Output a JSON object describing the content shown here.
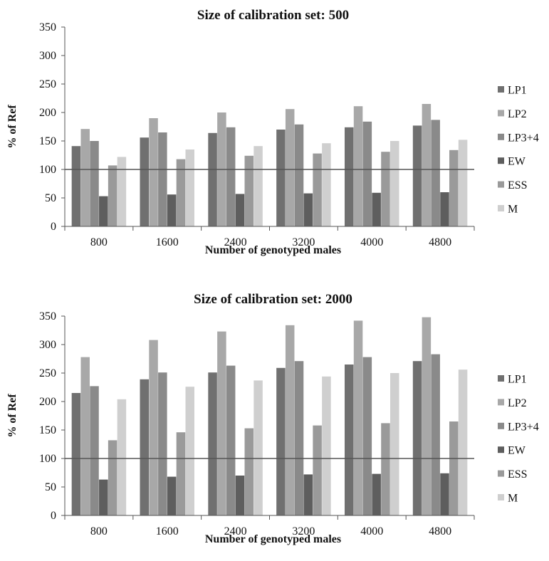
{
  "chart_data": [
    {
      "type": "bar",
      "title": "Size of calibration set: 500",
      "xlabel": "Number of genotyped males",
      "ylabel": "% of Ref",
      "ylim": [
        0,
        350
      ],
      "yticks": [
        0,
        50,
        100,
        150,
        200,
        250,
        300,
        350
      ],
      "reference_line": 100,
      "categories": [
        "800",
        "1600",
        "2400",
        "3200",
        "4000",
        "4800"
      ],
      "legend_position": "right",
      "series": [
        {
          "name": "LP1",
          "color": "#707070",
          "values": [
            141,
            156,
            164,
            170,
            174,
            177
          ]
        },
        {
          "name": "LP2",
          "color": "#a8a8a8",
          "values": [
            171,
            190,
            200,
            206,
            211,
            215
          ]
        },
        {
          "name": "LP3+4",
          "color": "#8a8a8a",
          "values": [
            150,
            165,
            174,
            179,
            184,
            187
          ]
        },
        {
          "name": "EW",
          "color": "#5e5e5e",
          "values": [
            53,
            56,
            57,
            58,
            59,
            60
          ]
        },
        {
          "name": "ESS",
          "color": "#9a9a9a",
          "values": [
            107,
            118,
            124,
            128,
            131,
            134
          ]
        },
        {
          "name": "M",
          "color": "#cfcfcf",
          "values": [
            122,
            135,
            141,
            146,
            150,
            152
          ]
        }
      ]
    },
    {
      "type": "bar",
      "title": "Size of calibration set: 2000",
      "xlabel": "Number of genotyped males",
      "ylabel": "% of Ref",
      "ylim": [
        0,
        350
      ],
      "yticks": [
        0,
        50,
        100,
        150,
        200,
        250,
        300,
        350
      ],
      "reference_line": 100,
      "categories": [
        "800",
        "1600",
        "2400",
        "3200",
        "4000",
        "4800"
      ],
      "legend_position": "right",
      "series": [
        {
          "name": "LP1",
          "color": "#707070",
          "values": [
            215,
            239,
            251,
            259,
            265,
            271
          ]
        },
        {
          "name": "LP2",
          "color": "#a8a8a8",
          "values": [
            278,
            308,
            323,
            334,
            342,
            348
          ]
        },
        {
          "name": "LP3+4",
          "color": "#8a8a8a",
          "values": [
            227,
            251,
            263,
            271,
            278,
            283
          ]
        },
        {
          "name": "EW",
          "color": "#5e5e5e",
          "values": [
            63,
            68,
            70,
            72,
            73,
            74
          ]
        },
        {
          "name": "ESS",
          "color": "#9a9a9a",
          "values": [
            132,
            146,
            153,
            158,
            162,
            165
          ]
        },
        {
          "name": "M",
          "color": "#cfcfcf",
          "values": [
            204,
            226,
            237,
            244,
            250,
            256
          ]
        }
      ]
    }
  ]
}
